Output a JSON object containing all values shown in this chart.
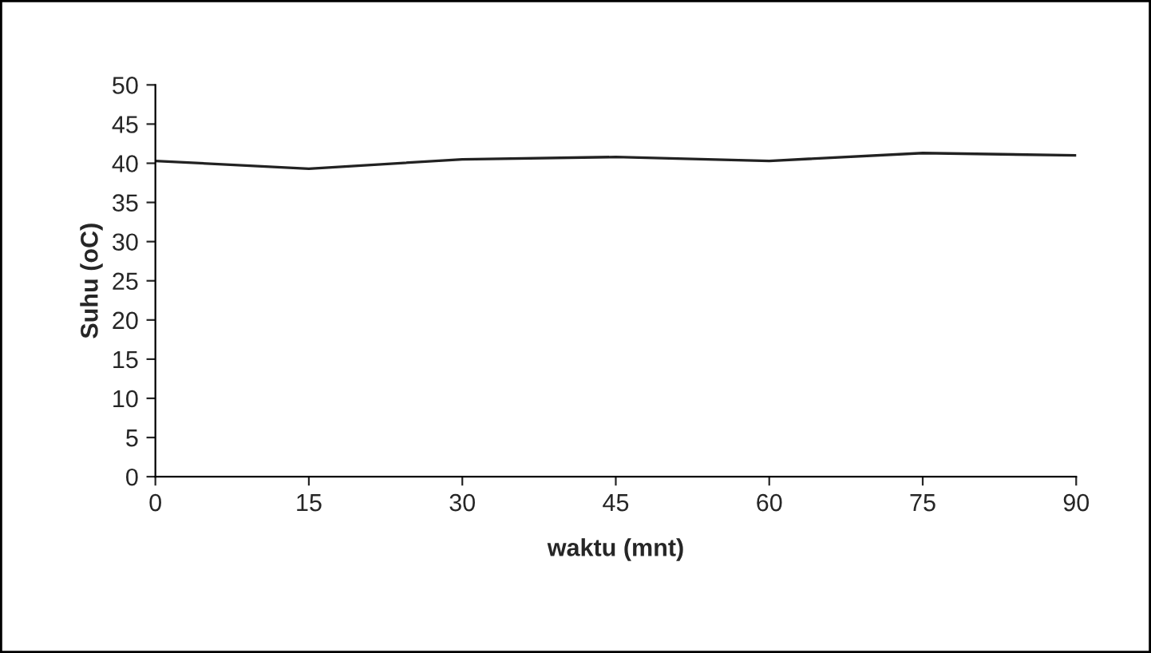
{
  "chart_data": {
    "type": "line",
    "xlabel": "waktu (mnt)",
    "ylabel": "Suhu (oC)",
    "x": [
      0,
      15,
      30,
      45,
      60,
      75,
      90
    ],
    "series": [
      {
        "color": "#222222",
        "values": [
          40.3,
          39.3,
          40.5,
          40.8,
          40.3,
          41.3,
          41.0
        ]
      }
    ],
    "xlim": [
      0,
      90
    ],
    "xticks": [
      0,
      15,
      30,
      45,
      60,
      75,
      90
    ],
    "ylim": [
      0,
      50
    ],
    "yticks": [
      0,
      5,
      10,
      15,
      20,
      25,
      30,
      35,
      40,
      45,
      50
    ],
    "grid": false,
    "legend": false,
    "marker": "none",
    "line_style": "solid"
  }
}
